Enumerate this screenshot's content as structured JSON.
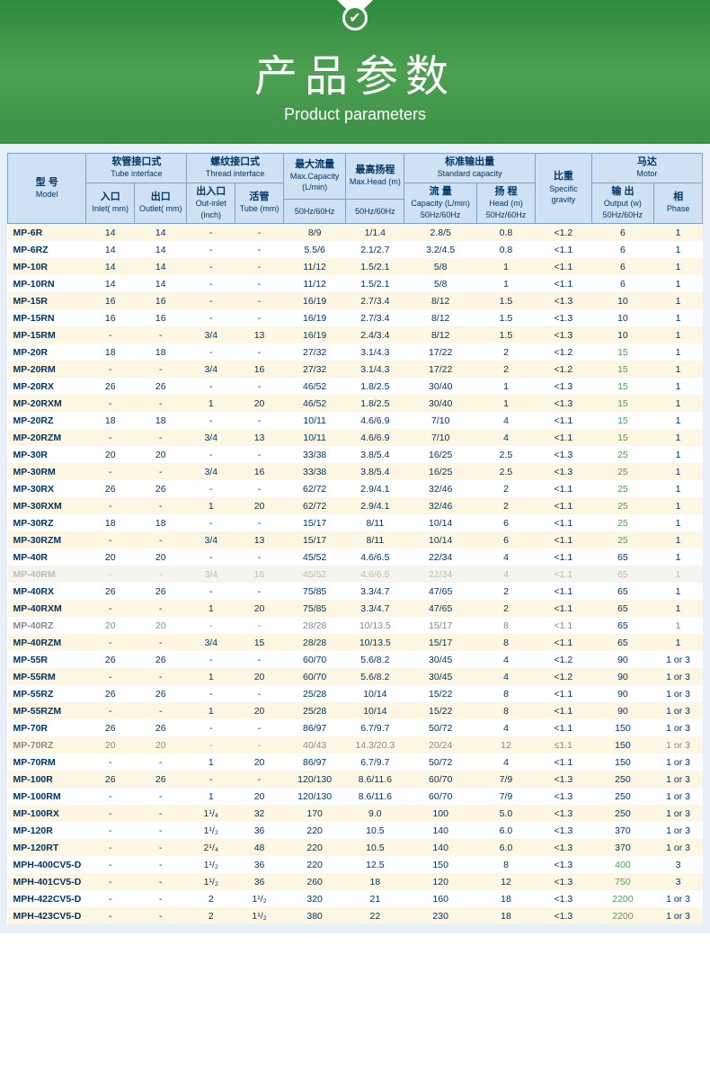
{
  "header": {
    "title_cn": "产品参数",
    "title_en": "Product parameters",
    "icon_glyph": "✔"
  },
  "table": {
    "headers": {
      "model_cn": "型 号",
      "model_en": "Model",
      "tube_cn": "软管接口式",
      "tube_en": "Tube interface",
      "inlet_cn": "入口",
      "inlet_en": "Inlet( mm)",
      "outlet_cn": "出口",
      "outlet_en": "Outlet( mm)",
      "thread_cn": "螺纹接口式",
      "thread_en": "Thread interface",
      "outinlet_cn": "出入口",
      "outinlet_en": "Out-inlet (inch)",
      "livetube_cn": "活管",
      "livetube_en": "Tube (mm)",
      "maxcap_cn": "最大流量",
      "maxcap_en": "Max.Capacity (L/min)",
      "maxcap_sub": "50Hz/60Hz",
      "maxhead_cn": "最高扬程",
      "maxhead_en": "Max.Head (m)",
      "maxhead_sub": "50Hz/60Hz",
      "stdcap_cn": "标准输出量",
      "stdcap_en": "Standard capacity",
      "flow_cn": "流 量",
      "flow_en": "Capacity (L/min) 50Hz/60Hz",
      "head_cn": "扬 程",
      "head_en": "Head (m) 50Hz/60Hz",
      "sg_cn": "比重",
      "sg_en": "Specific gravity",
      "motor_cn": "马达",
      "motor_en": "Motor",
      "output_cn": "输 出",
      "output_en": "Output (w) 50Hz/60Hz",
      "phase_cn": "相",
      "phase_en": "Phase"
    },
    "rows": [
      {
        "model": "MP-6R",
        "inlet": "14",
        "outlet": "14",
        "oi": "-",
        "tube": "-",
        "maxc": "8/9",
        "maxh": "1/1.4",
        "flow": "2.8/5",
        "head": "0.8",
        "sg": "<1.2",
        "out": "6",
        "ph": "1"
      },
      {
        "model": "MP-6RZ",
        "inlet": "14",
        "outlet": "14",
        "oi": "-",
        "tube": "-",
        "maxc": "5.5/6",
        "maxh": "2.1/2.7",
        "flow": "3.2/4.5",
        "head": "0.8",
        "sg": "<1.1",
        "out": "6",
        "ph": "1"
      },
      {
        "model": "MP-10R",
        "inlet": "14",
        "outlet": "14",
        "oi": "-",
        "tube": "-",
        "maxc": "11/12",
        "maxh": "1.5/2.1",
        "flow": "5/8",
        "head": "1",
        "sg": "<1.1",
        "out": "6",
        "ph": "1"
      },
      {
        "model": "MP-10RN",
        "inlet": "14",
        "outlet": "14",
        "oi": "-",
        "tube": "-",
        "maxc": "11/12",
        "maxh": "1.5/2.1",
        "flow": "5/8",
        "head": "1",
        "sg": "<1.1",
        "out": "6",
        "ph": "1"
      },
      {
        "model": "MP-15R",
        "inlet": "16",
        "outlet": "16",
        "oi": "-",
        "tube": "-",
        "maxc": "16/19",
        "maxh": "2.7/3.4",
        "flow": "8/12",
        "head": "1.5",
        "sg": "<1.3",
        "out": "10",
        "ph": "1"
      },
      {
        "model": "MP-15RN",
        "inlet": "16",
        "outlet": "16",
        "oi": "-",
        "tube": "-",
        "maxc": "16/19",
        "maxh": "2.7/3.4",
        "flow": "8/12",
        "head": "1.5",
        "sg": "<1.3",
        "out": "10",
        "ph": "1"
      },
      {
        "model": "MP-15RM",
        "inlet": "-",
        "outlet": "-",
        "oi": "3/4",
        "tube": "13",
        "maxc": "16/19",
        "maxh": "2.4/3.4",
        "flow": "8/12",
        "head": "1.5",
        "sg": "<1.3",
        "out": "10",
        "ph": "1"
      },
      {
        "model": "MP-20R",
        "inlet": "18",
        "outlet": "18",
        "oi": "-",
        "tube": "-",
        "maxc": "27/32",
        "maxh": "3.1/4.3",
        "flow": "17/22",
        "head": "2",
        "sg": "<1.2",
        "out": "15",
        "out_green": true,
        "ph": "1"
      },
      {
        "model": "MP-20RM",
        "inlet": "-",
        "outlet": "-",
        "oi": "3/4",
        "tube": "16",
        "maxc": "27/32",
        "maxh": "3.1/4.3",
        "flow": "17/22",
        "head": "2",
        "sg": "<1.2",
        "out": "15",
        "out_green": true,
        "ph": "1"
      },
      {
        "model": "MP-20RX",
        "inlet": "26",
        "outlet": "26",
        "oi": "-",
        "tube": "-",
        "maxc": "46/52",
        "maxh": "1.8/2.5",
        "flow": "30/40",
        "head": "1",
        "sg": "<1.3",
        "out": "15",
        "out_green": true,
        "ph": "1"
      },
      {
        "model": "MP-20RXM",
        "inlet": "-",
        "outlet": "-",
        "oi": "1",
        "tube": "20",
        "maxc": "46/52",
        "maxh": "1.8/2.5",
        "flow": "30/40",
        "head": "1",
        "sg": "<1.3",
        "out": "15",
        "out_green": true,
        "ph": "1"
      },
      {
        "model": "MP-20RZ",
        "inlet": "18",
        "outlet": "18",
        "oi": "-",
        "tube": "-",
        "maxc": "10/11",
        "maxh": "4.6/6.9",
        "flow": "7/10",
        "head": "4",
        "sg": "<1.1",
        "out": "15",
        "out_green": true,
        "ph": "1"
      },
      {
        "model": "MP-20RZM",
        "inlet": "-",
        "outlet": "-",
        "oi": "3/4",
        "tube": "13",
        "maxc": "10/11",
        "maxh": "4.6/6.9",
        "flow": "7/10",
        "head": "4",
        "sg": "<1.1",
        "out": "15",
        "out_green": true,
        "ph": "1"
      },
      {
        "model": "MP-30R",
        "inlet": "20",
        "outlet": "20",
        "oi": "-",
        "tube": "-",
        "maxc": "33/38",
        "maxh": "3.8/5.4",
        "flow": "16/25",
        "head": "2.5",
        "sg": "<1.3",
        "out": "25",
        "out_green": true,
        "ph": "1"
      },
      {
        "model": "MP-30RM",
        "inlet": "-",
        "outlet": "-",
        "oi": "3/4",
        "tube": "16",
        "maxc": "33/38",
        "maxh": "3.8/5.4",
        "flow": "16/25",
        "head": "2.5",
        "sg": "<1.3",
        "out": "25",
        "out_green": true,
        "ph": "1"
      },
      {
        "model": "MP-30RX",
        "inlet": "26",
        "outlet": "26",
        "oi": "-",
        "tube": "-",
        "maxc": "62/72",
        "maxh": "2.9/4.1",
        "flow": "32/46",
        "head": "2",
        "sg": "<1.1",
        "out": "25",
        "out_green": true,
        "ph": "1"
      },
      {
        "model": "MP-30RXM",
        "inlet": "-",
        "outlet": "-",
        "oi": "1",
        "tube": "20",
        "maxc": "62/72",
        "maxh": "2.9/4.1",
        "flow": "32/46",
        "head": "2",
        "sg": "<1.1",
        "out": "25",
        "out_green": true,
        "ph": "1"
      },
      {
        "model": "MP-30RZ",
        "inlet": "18",
        "outlet": "18",
        "oi": "-",
        "tube": "-",
        "maxc": "15/17",
        "maxh": "8/11",
        "flow": "10/14",
        "head": "6",
        "sg": "<1.1",
        "out": "25",
        "out_green": true,
        "ph": "1"
      },
      {
        "model": "MP-30RZM",
        "inlet": "-",
        "outlet": "-",
        "oi": "3/4",
        "tube": "13",
        "maxc": "15/17",
        "maxh": "8/11",
        "flow": "10/14",
        "head": "6",
        "sg": "<1.1",
        "out": "25",
        "out_green": true,
        "ph": "1"
      },
      {
        "model": "MP-40R",
        "inlet": "20",
        "outlet": "20",
        "oi": "-",
        "tube": "-",
        "maxc": "45/52",
        "maxh": "4.6/6.5",
        "flow": "22/34",
        "head": "4",
        "sg": "<1.1",
        "out": "65",
        "ph": "1"
      },
      {
        "model": "MP-40RM",
        "inlet": "-",
        "outlet": "-",
        "oi": "3/4",
        "tube": "16",
        "maxc": "45/52",
        "maxh": "4.6/6.5",
        "flow": "22/34",
        "head": "4",
        "sg": "<1.1",
        "out": "65",
        "ph": "1",
        "watermark": true
      },
      {
        "model": "MP-40RX",
        "inlet": "26",
        "outlet": "26",
        "oi": "-",
        "tube": "-",
        "maxc": "75/85",
        "maxh": "3.3/4.7",
        "flow": "47/65",
        "head": "2",
        "sg": "<1.1",
        "out": "65",
        "ph": "1"
      },
      {
        "model": "MP-40RXM",
        "inlet": "-",
        "outlet": "-",
        "oi": "1",
        "tube": "20",
        "maxc": "75/85",
        "maxh": "3.3/4.7",
        "flow": "47/65",
        "head": "2",
        "sg": "<1.1",
        "out": "65",
        "ph": "1"
      },
      {
        "model": "MP-40RZ",
        "inlet": "20",
        "outlet": "20",
        "oi": "-",
        "tube": "-",
        "maxc": "28/28",
        "maxh": "10/13.5",
        "flow": "15/17",
        "head": "8",
        "sg": "<1.1",
        "out": "65",
        "ph": "1",
        "gray": true
      },
      {
        "model": "MP-40RZM",
        "inlet": "-",
        "outlet": "-",
        "oi": "3/4",
        "tube": "15",
        "maxc": "28/28",
        "maxh": "10/13.5",
        "flow": "15/17",
        "head": "8",
        "sg": "<1.1",
        "out": "65",
        "ph": "1"
      },
      {
        "model": "MP-55R",
        "inlet": "26",
        "outlet": "26",
        "oi": "-",
        "tube": "-",
        "maxc": "60/70",
        "maxh": "5.6/8.2",
        "flow": "30/45",
        "head": "4",
        "sg": "<1.2",
        "out": "90",
        "ph": "1 or 3"
      },
      {
        "model": "MP-55RM",
        "inlet": "-",
        "outlet": "-",
        "oi": "1",
        "tube": "20",
        "maxc": "60/70",
        "maxh": "5.6/8.2",
        "flow": "30/45",
        "head": "4",
        "sg": "<1.2",
        "out": "90",
        "ph": "1 or 3"
      },
      {
        "model": "MP-55RZ",
        "inlet": "26",
        "outlet": "26",
        "oi": "-",
        "tube": "-",
        "maxc": "25/28",
        "maxh": "10/14",
        "flow": "15/22",
        "head": "8",
        "sg": "<1.1",
        "out": "90",
        "ph": "1 or 3"
      },
      {
        "model": "MP-55RZM",
        "inlet": "-",
        "outlet": "-",
        "oi": "1",
        "tube": "20",
        "maxc": "25/28",
        "maxh": "10/14",
        "flow": "15/22",
        "head": "8",
        "sg": "<1.1",
        "out": "90",
        "ph": "1 or 3"
      },
      {
        "model": "MP-70R",
        "inlet": "26",
        "outlet": "26",
        "oi": "-",
        "tube": "-",
        "maxc": "86/97",
        "maxh": "6.7/9.7",
        "flow": "50/72",
        "head": "4",
        "sg": "<1.1",
        "out": "150",
        "ph": "1 or 3"
      },
      {
        "model": "MP-70RZ",
        "inlet": "20",
        "outlet": "20",
        "oi": "-",
        "tube": "-",
        "maxc": "40/43",
        "maxh": "14.3/20.3",
        "flow": "20/24",
        "head": "12",
        "sg": "≤1.1",
        "out": "150",
        "ph": "1 or 3",
        "gray": true
      },
      {
        "model": "MP-70RM",
        "inlet": "-",
        "outlet": "-",
        "oi": "1",
        "tube": "20",
        "maxc": "86/97",
        "maxh": "6.7/9.7",
        "flow": "50/72",
        "head": "4",
        "sg": "<1.1",
        "out": "150",
        "ph": "1 or 3"
      },
      {
        "model": "MP-100R",
        "inlet": "26",
        "outlet": "26",
        "oi": "-",
        "tube": "-",
        "maxc": "120/130",
        "maxh": "8.6/11.6",
        "flow": "60/70",
        "head": "7/9",
        "sg": "<1.3",
        "out": "250",
        "ph": "1 or 3"
      },
      {
        "model": "MP-100RM",
        "inlet": "-",
        "outlet": "-",
        "oi": "1",
        "tube": "20",
        "maxc": "120/130",
        "maxh": "8.6/11.6",
        "flow": "60/70",
        "head": "7/9",
        "sg": "<1.3",
        "out": "250",
        "ph": "1 or 3"
      },
      {
        "model": "MP-100RX",
        "inlet": "-",
        "outlet": "-",
        "oi": "1¹/₄",
        "tube": "32",
        "maxc": "170",
        "maxh": "9.0",
        "flow": "100",
        "head": "5.0",
        "sg": "<1.3",
        "out": "250",
        "ph": "1 or 3"
      },
      {
        "model": "MP-120R",
        "inlet": "-",
        "outlet": "-",
        "oi": "1¹/₂",
        "tube": "36",
        "maxc": "220",
        "maxh": "10.5",
        "flow": "140",
        "head": "6.0",
        "sg": "<1.3",
        "out": "370",
        "ph": "1 or 3"
      },
      {
        "model": "MP-120RT",
        "inlet": "-",
        "outlet": "-",
        "oi": "2¹/₄",
        "tube": "48",
        "maxc": "220",
        "maxh": "10.5",
        "flow": "140",
        "head": "6.0",
        "sg": "<1.3",
        "out": "370",
        "ph": "1 or 3"
      },
      {
        "model": "MPH-400CV5-D",
        "inlet": "-",
        "outlet": "-",
        "oi": "1¹/₂",
        "tube": "36",
        "maxc": "220",
        "maxh": "12.5",
        "flow": "150",
        "head": "8",
        "sg": "<1.3",
        "out": "400",
        "out_green": true,
        "ph": "3"
      },
      {
        "model": "MPH-401CV5-D",
        "inlet": "-",
        "outlet": "-",
        "oi": "1¹/₂",
        "tube": "36",
        "maxc": "260",
        "maxh": "18",
        "flow": "120",
        "head": "12",
        "sg": "<1.3",
        "out": "750",
        "out_green": true,
        "ph": "3"
      },
      {
        "model": "MPH-422CV5-D",
        "inlet": "-",
        "outlet": "-",
        "oi": "2",
        "tube": "1¹/₂",
        "maxc": "320",
        "maxh": "21",
        "flow": "160",
        "head": "18",
        "sg": "<1.3",
        "out": "2200",
        "out_green": true,
        "ph": "1 or 3"
      },
      {
        "model": "MPH-423CV5-D",
        "inlet": "-",
        "outlet": "-",
        "oi": "2",
        "tube": "1¹/₂",
        "maxc": "380",
        "maxh": "22",
        "flow": "230",
        "head": "18",
        "sg": "<1.3",
        "out": "2200",
        "out_green": true,
        "ph": "1 or 3"
      }
    ]
  }
}
